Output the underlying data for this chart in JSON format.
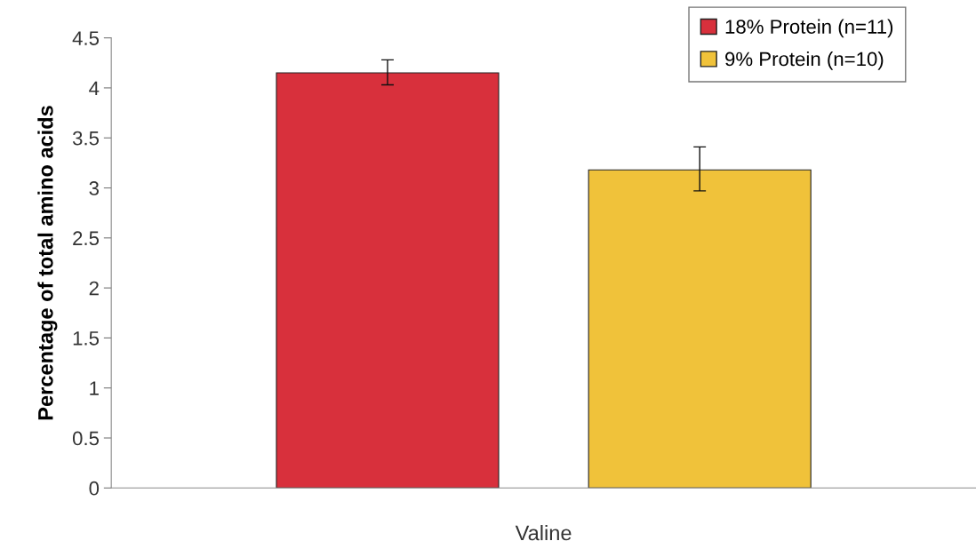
{
  "chart_data": {
    "type": "bar",
    "ylabel": "Percentage of total amino acids",
    "categories": [
      "Valine"
    ],
    "series": [
      {
        "name": "18% Protein (n=11)",
        "color": "#d8303c",
        "values": [
          4.15
        ],
        "errors": [
          [
            4.03,
            4.28
          ]
        ]
      },
      {
        "name": "9% Protein (n=10)",
        "color": "#f0c23a",
        "values": [
          3.18
        ],
        "errors": [
          [
            2.97,
            3.41
          ]
        ]
      }
    ],
    "ylim": [
      0,
      4.5
    ],
    "yticks": [
      0,
      0.5,
      1,
      1.5,
      2,
      2.5,
      3,
      3.5,
      4,
      4.5
    ],
    "grid": false,
    "legend": "top right"
  }
}
